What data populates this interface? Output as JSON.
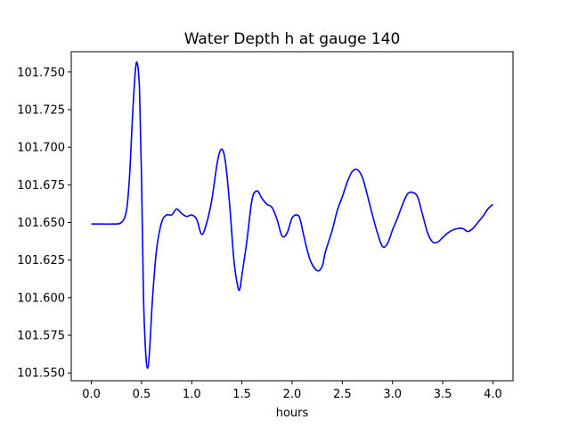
{
  "chart_data": {
    "type": "line",
    "title": "Water Depth h at gauge 140",
    "xlabel": "hours",
    "ylabel": "",
    "xlim": [
      -0.2,
      4.2
    ],
    "ylim": [
      101.5448,
      101.7635
    ],
    "grid": false,
    "legend": "none",
    "xticks": [
      0.0,
      0.5,
      1.0,
      1.5,
      2.0,
      2.5,
      3.0,
      3.5,
      4.0
    ],
    "xtick_labels": [
      "0.0",
      "0.5",
      "1.0",
      "1.5",
      "2.0",
      "2.5",
      "3.0",
      "3.5",
      "4.0"
    ],
    "yticks": [
      101.55,
      101.575,
      101.6,
      101.625,
      101.65,
      101.675,
      101.7,
      101.725,
      101.75
    ],
    "ytick_labels": [
      "101.550",
      "101.575",
      "101.600",
      "101.625",
      "101.650",
      "101.675",
      "101.700",
      "101.725",
      "101.750"
    ],
    "series": [
      {
        "color": "#0000ff",
        "x": [
          0.0,
          0.1,
          0.2,
          0.3,
          0.35,
          0.38,
          0.41,
          0.44,
          0.46,
          0.48,
          0.5,
          0.52,
          0.54,
          0.56,
          0.58,
          0.61,
          0.65,
          0.7,
          0.75,
          0.8,
          0.85,
          0.9,
          0.95,
          1.0,
          1.05,
          1.1,
          1.15,
          1.2,
          1.25,
          1.28,
          1.31,
          1.34,
          1.38,
          1.42,
          1.46,
          1.48,
          1.5,
          1.55,
          1.6,
          1.65,
          1.7,
          1.75,
          1.8,
          1.85,
          1.9,
          1.95,
          2.0,
          2.05,
          2.08,
          2.12,
          2.18,
          2.25,
          2.3,
          2.33,
          2.4,
          2.45,
          2.5,
          2.55,
          2.6,
          2.65,
          2.7,
          2.75,
          2.8,
          2.85,
          2.9,
          2.95,
          3.0,
          3.05,
          3.1,
          3.15,
          3.2,
          3.25,
          3.3,
          3.35,
          3.4,
          3.45,
          3.5,
          3.55,
          3.6,
          3.65,
          3.7,
          3.75,
          3.8,
          3.85,
          3.9,
          3.95,
          4.0
        ],
        "y": [
          101.649,
          101.649,
          101.649,
          101.65,
          101.658,
          101.68,
          101.72,
          101.752,
          101.755,
          101.738,
          101.68,
          101.6,
          101.565,
          101.553,
          101.565,
          101.6,
          101.632,
          101.65,
          101.655,
          101.655,
          101.659,
          101.656,
          101.654,
          101.655,
          101.652,
          101.642,
          101.65,
          101.665,
          101.688,
          101.697,
          101.698,
          101.688,
          101.66,
          101.625,
          101.607,
          101.606,
          101.615,
          101.638,
          101.665,
          101.671,
          101.666,
          101.662,
          101.66,
          101.652,
          101.641,
          101.643,
          101.653,
          101.655,
          101.652,
          101.64,
          101.625,
          101.618,
          101.621,
          101.63,
          101.645,
          101.658,
          101.667,
          101.677,
          101.684,
          101.685,
          101.68,
          101.668,
          101.655,
          101.643,
          101.634,
          101.636,
          101.645,
          101.653,
          101.662,
          101.669,
          101.67,
          101.667,
          101.655,
          101.643,
          101.637,
          101.637,
          101.64,
          101.643,
          101.645,
          101.646,
          101.646,
          101.644,
          101.646,
          101.65,
          101.654,
          101.659,
          101.662
        ]
      }
    ]
  }
}
